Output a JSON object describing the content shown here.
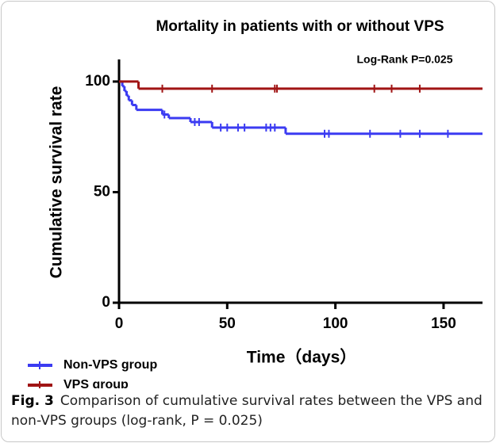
{
  "chart_data": {
    "type": "step",
    "title": "Mortality in patients with or without  VPS",
    "annotation": "Log-Rank P=0.025",
    "x_label": "Time（days）",
    "y_label": "Cumulative survival rate",
    "xlim": [
      0,
      168
    ],
    "ylim": [
      0,
      110
    ],
    "xticks": [
      0,
      50,
      100,
      150
    ],
    "yticks": [
      0,
      50,
      100
    ],
    "series": [
      {
        "name": "Non-VPS group",
        "color": "#3b3bf2",
        "x": [
          0,
          1.5,
          2.5,
          3.5,
          4.5,
          6,
          8,
          20,
          23,
          33,
          43,
          77,
          168
        ],
        "values": [
          100,
          97.9,
          95.7,
          93.6,
          91.5,
          89.4,
          87.2,
          85.1,
          83.5,
          81.7,
          79.2,
          76.4,
          76.4
        ],
        "censor_x": [
          21,
          35,
          37,
          47,
          50,
          55,
          58,
          68,
          70,
          72,
          95,
          97,
          116,
          130,
          139,
          152
        ],
        "censor_values": [
          85.1,
          81.7,
          81.7,
          79.2,
          79.2,
          79.2,
          79.2,
          79.2,
          79.2,
          79.2,
          76.4,
          76.4,
          76.4,
          76.4,
          76.4,
          76.4
        ]
      },
      {
        "name": "VPS group",
        "color": "#a01414",
        "x": [
          0,
          9,
          168
        ],
        "values": [
          100,
          96.8,
          96.8
        ],
        "censor_x": [
          20,
          43,
          72,
          73,
          118,
          126,
          139
        ],
        "censor_values": [
          96.8,
          96.8,
          96.8,
          96.8,
          96.8,
          96.8,
          96.8
        ]
      }
    ]
  },
  "caption": {
    "label": "Fig. 3",
    "text": "Comparison of cumulative survival rates between the VPS and non-VPS groups (log-rank, P = 0.025)"
  }
}
